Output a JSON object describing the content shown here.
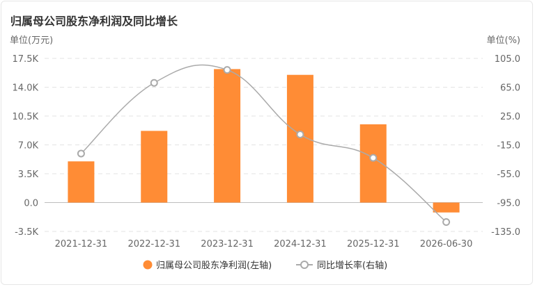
{
  "header": {
    "title": "归属母公司股东净利润及同比增长"
  },
  "chart_data": {
    "type": "bar+line",
    "title": "归属母公司股东净利润及同比增长",
    "left_unit": "单位(万元)",
    "right_unit": "单位(%)",
    "categories": [
      "2021-12-31",
      "2022-12-31",
      "2023-12-31",
      "2024-12-31",
      "2025-12-31",
      "2026-06-30"
    ],
    "left_ticks": [
      "17.5K",
      "14.0K",
      "10.5K",
      "7.0K",
      "3.5K",
      "0.0",
      "-3.5K"
    ],
    "right_ticks": [
      "105.0",
      "65.0",
      "25.0",
      "-15.0",
      "-55.0",
      "-95.0",
      "-135.0"
    ],
    "left_ylim": [
      -3500,
      17500
    ],
    "right_ylim": [
      -135,
      105
    ],
    "series": [
      {
        "name": "归属母公司股东净利润(左轴)",
        "type": "bar",
        "axis": "left",
        "color": "#ff8c35",
        "values": [
          5000,
          8700,
          16200,
          15500,
          9500,
          -1200
        ]
      },
      {
        "name": "同比增长率(右轴)",
        "type": "line",
        "axis": "right",
        "color": "#aaaaaa",
        "values": [
          -27,
          71,
          89,
          -0.5,
          -33,
          -122
        ]
      }
    ],
    "grid": true,
    "legend_position": "bottom"
  }
}
